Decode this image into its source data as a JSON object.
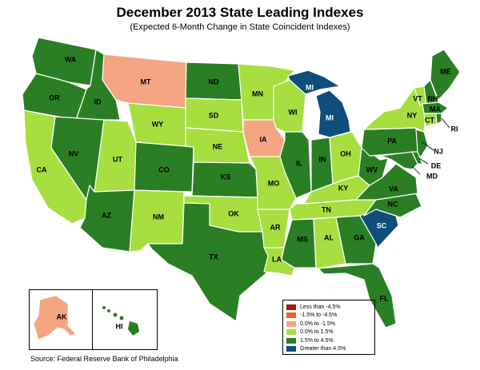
{
  "title": "December 2013 State Leading Indexes",
  "subtitle": "(Expected 6-Month Change in State Coincident Indexes)",
  "source": "Source: Federal Reserve Bank of Philadelphia",
  "colors": {
    "cat1": "#a01919",
    "cat2": "#e8661e",
    "cat3": "#f4a582",
    "cat4": "#a6df3f",
    "cat5": "#2a7e24",
    "cat6": "#0f4d7a"
  },
  "legend": [
    {
      "label": "Less than -4.5%",
      "color": "#a01919"
    },
    {
      "label": "-1.5% to -4.5%",
      "color": "#e8661e"
    },
    {
      "label": "0.0% to -1.5%",
      "color": "#f4a582"
    },
    {
      "label": "0.0% to  1.5%",
      "color": "#a6df3f"
    },
    {
      "label": "1.5% to  4.5%",
      "color": "#2a7e24"
    },
    {
      "label": "Greater than 4.5%",
      "color": "#0f4d7a"
    }
  ],
  "states": {
    "WA": "1.5% to  4.5%",
    "OR": "1.5% to  4.5%",
    "CA": "0.0% to  1.5%",
    "ID": "1.5% to  4.5%",
    "NV": "1.5% to  4.5%",
    "MT": "0.0% to -1.5%",
    "WY": "0.0% to  1.5%",
    "UT": "0.0% to  1.5%",
    "AZ": "1.5% to  4.5%",
    "CO": "1.5% to  4.5%",
    "NM": "0.0% to  1.5%",
    "ND": "1.5% to  4.5%",
    "SD": "0.0% to  1.5%",
    "NE": "0.0% to  1.5%",
    "KS": "1.5% to  4.5%",
    "OK": "0.0% to  1.5%",
    "TX": "1.5% to  4.5%",
    "MN": "0.0% to  1.5%",
    "IA": "0.0% to -1.5%",
    "MO": "0.0% to  1.5%",
    "AR": "0.0% to  1.5%",
    "LA": "0.0% to  1.5%",
    "WI": "0.0% to  1.5%",
    "IL": "1.5% to  4.5%",
    "MI": "Greater than 4.5%",
    "IN": "1.5% to  4.5%",
    "OH": "0.0% to  1.5%",
    "KY": "0.0% to  1.5%",
    "TN": "0.0% to  1.5%",
    "MS": "1.5% to  4.5%",
    "AL": "0.0% to  1.5%",
    "GA": "1.5% to  4.5%",
    "FL": "1.5% to  4.5%",
    "SC": "Greater than 4.5%",
    "NC": "1.5% to  4.5%",
    "VA": "1.5% to  4.5%",
    "WV": "1.5% to  4.5%",
    "PA": "1.5% to  4.5%",
    "NY": "0.0% to  1.5%",
    "VT": "0.0% to  1.5%",
    "NH": "1.5% to  4.5%",
    "ME": "1.5% to  4.5%",
    "MA": "1.5% to  4.5%",
    "CT": "0.0% to  1.5%",
    "RI": "1.5% to  4.5%",
    "NJ": "1.5% to  4.5%",
    "DE": "1.5% to  4.5%",
    "MD": "1.5% to  4.5%",
    "AK": "0.0% to -1.5%",
    "HI": "1.5% to  4.5%"
  }
}
